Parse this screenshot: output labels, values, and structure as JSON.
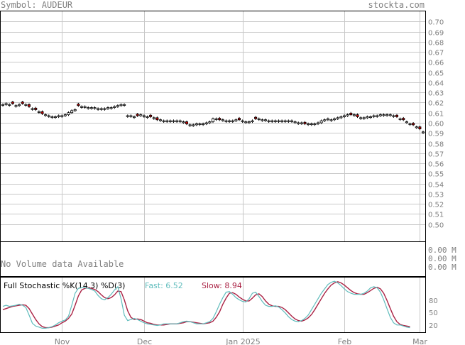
{
  "header": {
    "symbol_label": "Symbol: AUDEUR",
    "site": "stockta.com"
  },
  "volume": {
    "message": "No Volume data Available",
    "ticks": [
      "0.00 M",
      "0.00 M",
      "0.00 M"
    ]
  },
  "stochastic": {
    "title": "Full Stochastic %K(14,3) %D(3)",
    "fast_label": "Fast: 6.52",
    "slow_label": "Slow: 8.94",
    "ticks": [
      80,
      50,
      20
    ],
    "fast_color": "#5fbcbc",
    "slow_color": "#aa2244"
  },
  "colors": {
    "grid": "#c8c8c8",
    "frame": "#000000",
    "down_candle": "#cc0000",
    "up_candle": "#ffffff",
    "text": "#808080"
  },
  "chart_data": {
    "type": "candlestick",
    "y_ticks": [
      0.7,
      0.69,
      0.68,
      0.67,
      0.66,
      0.65,
      0.64,
      0.63,
      0.62,
      0.61,
      0.6,
      0.59,
      0.58,
      0.57,
      0.56,
      0.55,
      0.54,
      0.53,
      0.52,
      0.51,
      0.5
    ],
    "ylim": [
      0.483,
      0.71
    ],
    "x_labels": [
      "Nov",
      "Dec",
      "Jan 2025",
      "Feb",
      "Mar"
    ],
    "x_label_index": [
      18,
      43,
      73,
      104,
      127
    ],
    "close": [
      0.618,
      0.619,
      0.618,
      0.619,
      0.617,
      0.618,
      0.619,
      0.618,
      0.616,
      0.614,
      0.613,
      0.611,
      0.609,
      0.608,
      0.607,
      0.606,
      0.606,
      0.607,
      0.607,
      0.608,
      0.61,
      0.612,
      0.613,
      0.617,
      0.616,
      0.616,
      0.615,
      0.615,
      0.615,
      0.614,
      0.614,
      0.614,
      0.615,
      0.615,
      0.616,
      0.617,
      0.618,
      0.618,
      0.607,
      0.607,
      0.606,
      0.607,
      0.608,
      0.607,
      0.606,
      0.606,
      0.605,
      0.603,
      0.603,
      0.602,
      0.602,
      0.602,
      0.602,
      0.602,
      0.602,
      0.601,
      0.599,
      0.598,
      0.598,
      0.599,
      0.599,
      0.599,
      0.6,
      0.601,
      0.604,
      0.604,
      0.603,
      0.603,
      0.602,
      0.602,
      0.602,
      0.603,
      0.603,
      0.602,
      0.601,
      0.601,
      0.602,
      0.604,
      0.604,
      0.603,
      0.603,
      0.602,
      0.602,
      0.602,
      0.602,
      0.602,
      0.602,
      0.602,
      0.602,
      0.601,
      0.6,
      0.6,
      0.599,
      0.599,
      0.599,
      0.599,
      0.6,
      0.602,
      0.603,
      0.604,
      0.603,
      0.604,
      0.605,
      0.606,
      0.607,
      0.608,
      0.608,
      0.608,
      0.606,
      0.605,
      0.605,
      0.606,
      0.606,
      0.607,
      0.607,
      0.608,
      0.608,
      0.608,
      0.608,
      0.607,
      0.606,
      0.604,
      0.603,
      0.601,
      0.599,
      0.598,
      0.596,
      0.594,
      0.591
    ],
    "down": [
      false,
      false,
      false,
      true,
      false,
      false,
      true,
      false,
      true,
      false,
      true,
      false,
      true,
      false,
      false,
      false,
      false,
      false,
      false,
      false,
      false,
      false,
      false,
      true,
      false,
      false,
      false,
      false,
      false,
      false,
      false,
      false,
      false,
      false,
      false,
      false,
      false,
      false,
      false,
      false,
      false,
      true,
      false,
      false,
      false,
      true,
      false,
      true,
      false,
      false,
      false,
      false,
      false,
      false,
      false,
      false,
      true,
      false,
      false,
      false,
      false,
      false,
      false,
      false,
      false,
      false,
      true,
      false,
      false,
      false,
      false,
      false,
      true,
      false,
      false,
      false,
      false,
      true,
      false,
      false,
      false,
      false,
      false,
      false,
      false,
      false,
      false,
      false,
      false,
      false,
      false,
      false,
      true,
      false,
      false,
      false,
      false,
      false,
      false,
      false,
      false,
      false,
      false,
      false,
      false,
      false,
      true,
      false,
      true,
      false,
      false,
      false,
      false,
      false,
      false,
      false,
      false,
      false,
      false,
      false,
      true,
      false,
      true,
      false,
      false,
      true,
      false,
      true,
      false
    ],
    "stoch_fast": [
      46,
      48,
      46,
      47,
      48,
      50,
      48,
      44,
      30,
      15,
      10,
      8,
      6,
      6,
      7,
      9,
      12,
      16,
      19,
      21,
      28,
      48,
      70,
      79,
      80,
      80,
      79,
      77,
      74,
      66,
      60,
      58,
      62,
      68,
      76,
      82,
      60,
      30,
      20,
      22,
      24,
      22,
      19,
      16,
      14,
      13,
      12,
      11,
      12,
      14,
      14,
      14,
      14,
      14,
      16,
      18,
      19,
      18,
      16,
      14,
      14,
      14,
      16,
      18,
      24,
      36,
      50,
      62,
      72,
      73,
      68,
      62,
      58,
      55,
      54,
      60,
      70,
      72,
      64,
      55,
      48,
      46,
      46,
      47,
      45,
      40,
      34,
      27,
      22,
      19,
      18,
      20,
      24,
      30,
      40,
      50,
      60,
      70,
      78,
      86,
      90,
      92,
      89,
      84,
      78,
      73,
      70,
      68,
      68,
      68,
      70,
      74,
      80,
      82,
      80,
      72,
      58,
      42,
      26,
      16,
      12,
      12,
      10,
      8,
      7
    ],
    "stoch_slow": [
      40,
      42,
      44,
      46,
      47,
      48,
      49,
      48,
      42,
      32,
      22,
      14,
      9,
      7,
      7,
      8,
      10,
      12,
      16,
      19,
      24,
      32,
      48,
      65,
      76,
      79,
      80,
      79,
      77,
      73,
      67,
      62,
      60,
      62,
      67,
      74,
      73,
      58,
      38,
      26,
      22,
      23,
      22,
      19,
      16,
      15,
      13,
      12,
      12,
      12,
      13,
      14,
      14,
      14,
      15,
      16,
      18,
      18,
      17,
      16,
      15,
      14,
      15,
      16,
      19,
      26,
      36,
      50,
      61,
      70,
      71,
      68,
      63,
      59,
      56,
      56,
      61,
      67,
      69,
      64,
      56,
      50,
      47,
      46,
      46,
      44,
      40,
      34,
      28,
      23,
      20,
      19,
      21,
      25,
      31,
      40,
      50,
      60,
      70,
      78,
      85,
      89,
      91,
      89,
      85,
      80,
      75,
      71,
      69,
      68,
      68,
      71,
      75,
      79,
      81,
      78,
      70,
      57,
      42,
      28,
      18,
      13,
      11,
      10,
      9
    ]
  }
}
